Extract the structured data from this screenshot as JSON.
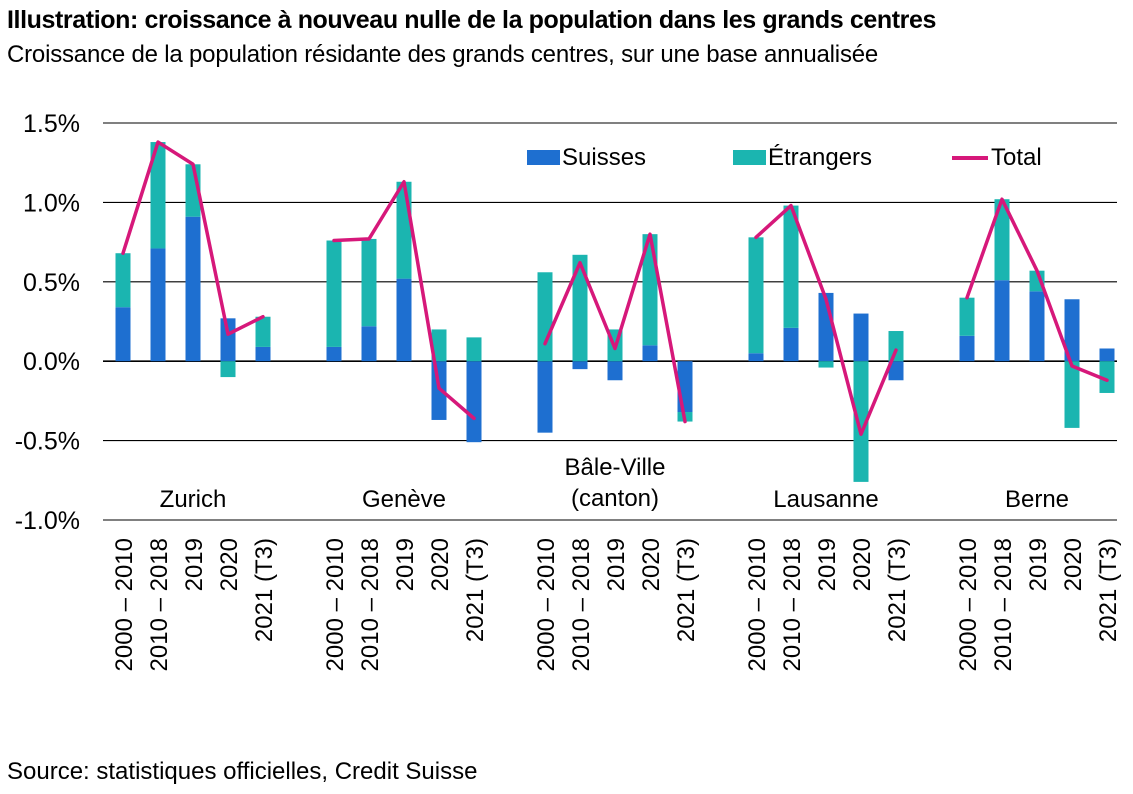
{
  "title": "Illustration: croissance à nouveau nulle de la population dans les grands centres",
  "subtitle": "Croissance de la population résidante des grands centres, sur une base annualisée",
  "source": "Source: statistiques officielles, Credit Suisse",
  "colors": {
    "suisses": "#1e6fd0",
    "etrangers": "#1bb5b0",
    "total": "#d6187a",
    "grid": "#000000"
  },
  "chart_data": {
    "type": "bar",
    "stacked": true,
    "ylim": [
      -1.0,
      1.5
    ],
    "yticks": [
      "1.5%",
      "1.0%",
      "0.5%",
      "0.0%",
      "-0.5%",
      "-1.0%"
    ],
    "ytick_values": [
      1.5,
      1.0,
      0.5,
      0.0,
      -0.5,
      -1.0
    ],
    "grid": "horizontal",
    "legend_position": "top-right",
    "legend": [
      "Suisses",
      "Étrangers",
      "Total"
    ],
    "period_labels": [
      "2000 – 2010",
      "2010 – 2018",
      "2019",
      "2020",
      "2021 (T3)"
    ],
    "groups": [
      {
        "name": "Zurich",
        "suisses": [
          0.34,
          0.71,
          0.91,
          0.27,
          0.09
        ],
        "etrangers": [
          0.34,
          0.67,
          0.33,
          -0.1,
          0.19
        ],
        "total": [
          0.68,
          1.38,
          1.24,
          0.17,
          0.28
        ]
      },
      {
        "name": "Genève",
        "suisses": [
          0.09,
          0.22,
          0.52,
          -0.37,
          -0.51
        ],
        "etrangers": [
          0.67,
          0.55,
          0.61,
          0.2,
          0.15
        ],
        "total": [
          0.76,
          0.77,
          1.13,
          -0.17,
          -0.36
        ]
      },
      {
        "name": "Bâle-Ville\n(canton)",
        "suisses": [
          -0.45,
          -0.05,
          -0.12,
          0.1,
          -0.32
        ],
        "etrangers": [
          0.56,
          0.67,
          0.2,
          0.7,
          -0.06
        ],
        "total": [
          0.11,
          0.62,
          0.08,
          0.8,
          -0.38
        ]
      },
      {
        "name": "Lausanne",
        "suisses": [
          0.05,
          0.21,
          0.43,
          0.3,
          -0.12
        ],
        "etrangers": [
          0.73,
          0.77,
          -0.04,
          -0.76,
          0.19
        ],
        "total": [
          0.78,
          0.98,
          0.39,
          -0.46,
          0.07
        ]
      },
      {
        "name": "Berne",
        "suisses": [
          0.16,
          0.51,
          0.44,
          0.39,
          0.08
        ],
        "etrangers": [
          0.24,
          0.51,
          0.13,
          -0.42,
          -0.2
        ],
        "total": [
          0.4,
          1.02,
          0.57,
          -0.03,
          -0.12
        ]
      }
    ]
  }
}
